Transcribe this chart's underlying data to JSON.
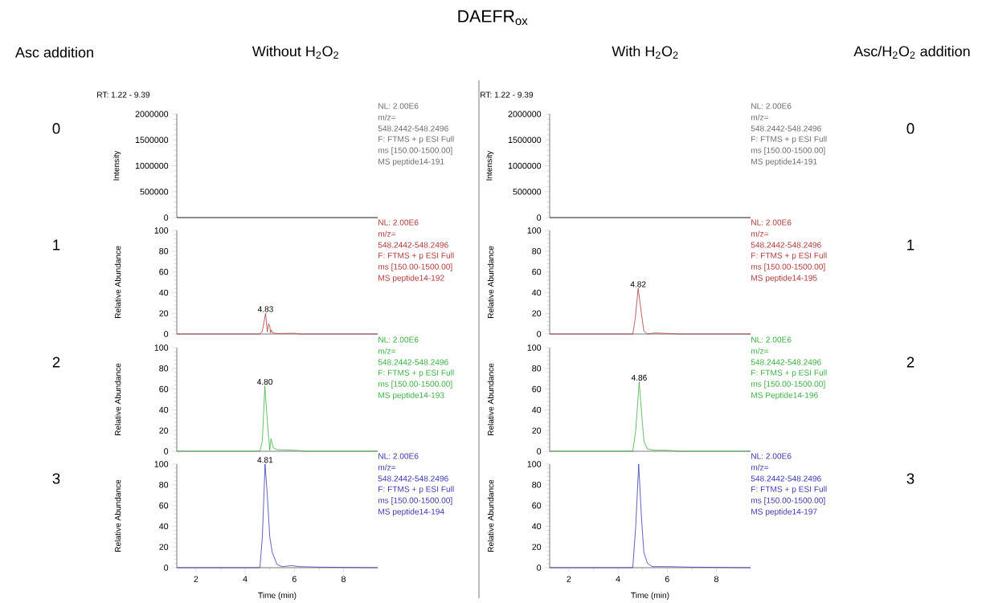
{
  "chart_data": [
    {
      "type": "other",
      "title": "DAEFR$_{ox}$"
    },
    {
      "type": "line",
      "subtitle": "Without H$_{2}$O$_{2}$",
      "ylabel": "Intensity",
      "color": "#6e6e6e",
      "x": [
        1.22,
        9.39
      ],
      "values": [
        0,
        0
      ],
      "xlim": [
        1.22,
        9.39
      ],
      "ylim": [
        0,
        2000000
      ],
      "xticks": [
        2,
        4,
        6,
        8
      ],
      "yticks": [
        0,
        500000,
        1000000,
        1500000,
        2000000
      ],
      "tick_labels": "y",
      "annotations": [
        "NL: 2.00E6",
        "m/z=",
        "548.2442-548.2496",
        "F: FTMS + p ESI Full",
        "ms [150.00-1500.00]",
        "MS peptide14-191",
        "0",
        "RT: 1.22 - 9.39",
        "Asc addition"
      ]
    },
    {
      "type": "line",
      "ylabel": "Relative Abundance",
      "color": "#b03a3a",
      "x": [
        1.22,
        4.6,
        4.7,
        4.83,
        4.9,
        4.95,
        5.0,
        5.03,
        5.06,
        5.12,
        5.3,
        6.0,
        6.2,
        9.39
      ],
      "values": [
        0,
        0,
        3,
        20,
        2,
        10,
        8,
        1,
        4,
        1,
        0.5,
        0.7,
        0,
        0
      ],
      "xlim": [
        1.22,
        9.39
      ],
      "ylim": [
        0,
        100
      ],
      "xticks": [
        2,
        4,
        6,
        8
      ],
      "yticks": [
        0,
        20,
        40,
        60,
        80,
        100
      ],
      "tick_labels": "y",
      "annotations": [
        "NL: 2.00E6",
        "m/z=",
        "548.2442-548.2496",
        "F: FTMS + p ESI Full",
        "ms [150.00-1500.00]",
        "MS peptide14-192",
        {
          "text": "4.83",
          "x": 4.83,
          "y": 20
        },
        "1"
      ]
    },
    {
      "type": "line",
      "ylabel": "Relative Abundance",
      "color": "#3cb043",
      "x": [
        1.22,
        4.6,
        4.7,
        4.8,
        4.9,
        5.0,
        5.05,
        5.15,
        5.3,
        6.0,
        6.5,
        9.39
      ],
      "values": [
        0,
        0,
        10,
        63,
        30,
        1,
        12,
        3,
        1.5,
        1,
        0,
        0
      ],
      "xlim": [
        1.22,
        9.39
      ],
      "ylim": [
        0,
        100
      ],
      "xticks": [
        2,
        4,
        6,
        8
      ],
      "yticks": [
        0,
        20,
        40,
        60,
        80,
        100
      ],
      "tick_labels": "y",
      "annotations": [
        "NL: 2.00E6",
        "m/z=",
        "548.2442-548.2496",
        "F: FTMS + p ESI Full",
        "ms [150.00-1500.00]",
        "MS peptide14-193",
        {
          "text": "4.80",
          "x": 4.8,
          "y": 63
        },
        "2"
      ]
    },
    {
      "type": "line",
      "ylabel": "Relative Abundance",
      "xlabel": "Time (min)",
      "color": "#3b3bb0",
      "x": [
        1.22,
        4.6,
        4.7,
        4.81,
        4.9,
        5.0,
        5.1,
        5.3,
        5.5,
        5.9,
        6.2,
        7.0,
        9.39
      ],
      "values": [
        0,
        0,
        30,
        100,
        70,
        30,
        15,
        3,
        1,
        2,
        1,
        0.5,
        0
      ],
      "xlim": [
        1.22,
        9.39
      ],
      "ylim": [
        0,
        100
      ],
      "xticks": [
        2,
        4,
        6,
        8
      ],
      "yticks": [
        0,
        20,
        40,
        60,
        80,
        100
      ],
      "annotations": [
        "NL: 2.00E6",
        "m/z=",
        "548.2442-548.2496",
        "F: FTMS + p ESI Full",
        "ms [150.00-1500.00]",
        "MS peptide14-194",
        {
          "text": "4.81",
          "x": 4.81,
          "y": 100
        },
        "3"
      ]
    },
    {
      "type": "line",
      "subtitle": "With H$_{2}$O$_{2}$",
      "ylabel": "Intensity",
      "color": "#6e6e6e",
      "x": [
        1.22,
        9.39
      ],
      "values": [
        0,
        0
      ],
      "xlim": [
        1.22,
        9.39
      ],
      "ylim": [
        0,
        2000000
      ],
      "xticks": [
        2,
        4,
        6,
        8
      ],
      "yticks": [
        0,
        500000,
        1000000,
        1500000,
        2000000
      ],
      "tick_labels": "y",
      "annotations": [
        "NL: 2.00E6",
        "m/z=",
        "548.2442-548.2496",
        "F: FTMS + p ESI Full",
        "ms [150.00-1500.00]",
        "MS peptide14-191",
        "0",
        "RT: 1.22 - 9.39",
        "Asc/H$_{2}$O$_{2}$ addition"
      ]
    },
    {
      "type": "line",
      "ylabel": "Relative Abundance",
      "color": "#b03a3a",
      "x": [
        1.22,
        4.6,
        4.7,
        4.82,
        4.95,
        5.05,
        5.2,
        5.5,
        6.0,
        6.5,
        9.39
      ],
      "values": [
        0,
        0,
        15,
        44,
        20,
        3,
        0,
        1,
        0.5,
        0,
        0
      ],
      "xlim": [
        1.22,
        9.39
      ],
      "ylim": [
        0,
        100
      ],
      "xticks": [
        2,
        4,
        6,
        8
      ],
      "yticks": [
        0,
        20,
        40,
        60,
        80,
        100
      ],
      "tick_labels": "y",
      "annotations": [
        "NL: 2.00E6",
        "m/z=",
        "548.2442-548.2496",
        "F: FTMS + p ESI Full",
        "ms [150.00-1500.00]",
        "MS peptide14-195",
        {
          "text": "4.82",
          "x": 4.82,
          "y": 44
        },
        "1"
      ]
    },
    {
      "type": "line",
      "ylabel": "Relative Abundance",
      "color": "#3cb043",
      "x": [
        1.22,
        4.6,
        4.72,
        4.86,
        4.95,
        5.05,
        5.2,
        5.5,
        6.0,
        6.5,
        9.39
      ],
      "values": [
        0,
        0,
        20,
        67,
        40,
        10,
        2,
        1,
        1,
        0,
        0
      ],
      "xlim": [
        1.22,
        9.39
      ],
      "ylim": [
        0,
        100
      ],
      "xticks": [
        2,
        4,
        6,
        8
      ],
      "yticks": [
        0,
        20,
        40,
        60,
        80,
        100
      ],
      "tick_labels": "y",
      "annotations": [
        "NL: 2.00E6",
        "m/z=",
        "548.2442-548.2496",
        "F: FTMS + p ESI Full",
        "ms [150.00-1500.00]",
        "MS Peptide14-196",
        {
          "text": "4.86",
          "x": 4.86,
          "y": 67
        },
        "2"
      ]
    },
    {
      "type": "line",
      "ylabel": "Relative Abundance",
      "xlabel": "Time (min)",
      "color": "#3b3bb0",
      "x": [
        1.22,
        4.6,
        4.72,
        4.84,
        4.95,
        5.05,
        5.2,
        5.4,
        6.0,
        7.0,
        9.39
      ],
      "values": [
        0,
        0,
        40,
        100,
        50,
        15,
        4,
        1,
        1,
        0.5,
        0
      ],
      "xlim": [
        1.22,
        9.39
      ],
      "ylim": [
        0,
        100
      ],
      "xticks": [
        2,
        4,
        6,
        8
      ],
      "yticks": [
        0,
        20,
        40,
        60,
        80,
        100
      ],
      "annotations": [
        "NL: 2.00E6",
        "m/z=",
        "548.2442-548.2496",
        "F: FTMS + p ESI Full",
        "ms [150.00-1500.00]",
        "MS peptide14-197",
        "3"
      ]
    }
  ]
}
